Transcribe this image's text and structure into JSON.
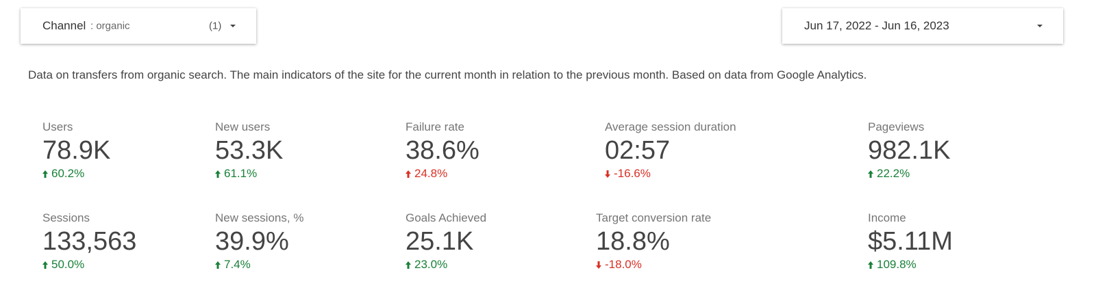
{
  "filter": {
    "label": "Channel",
    "value": ": organic",
    "count": "(1)"
  },
  "date_range": "Jun 17, 2022 - Jun 16, 2023",
  "description": "Data on transfers from organic search. The main indicators of the site for the current month in relation to the previous month. Based on data from Google Analytics.",
  "scorecards": [
    {
      "label": "Users",
      "value": "78.9K",
      "delta": "60.2%",
      "color": "#188038"
    },
    {
      "label": "New users",
      "value": "53.3K",
      "delta": "61.1%",
      "color": "#188038"
    },
    {
      "label": "Failure rate",
      "value": "38.6%",
      "delta": "24.8%",
      "color": "#d93025"
    },
    {
      "label": "Average session duration",
      "value": "02:57",
      "delta": "-16.6%",
      "color": "#d93025"
    },
    {
      "label": "Pageviews",
      "value": "982.1K",
      "delta": "22.2%",
      "color": "#188038"
    },
    {
      "label": "Sessions",
      "value": "133,563",
      "delta": "50.0%",
      "color": "#188038"
    },
    {
      "label": "New sessions, %",
      "value": "39.9%",
      "delta": "7.4%",
      "color": "#188038"
    },
    {
      "label": "Goals Achieved",
      "value": "25.1K",
      "delta": "23.0%",
      "color": "#188038"
    },
    {
      "label": "Target conversion rate",
      "value": "18.8%",
      "delta": "-18.0%",
      "color": "#d93025"
    },
    {
      "label": "Income",
      "value": "$5.11M",
      "delta": "109.8%",
      "color": "#188038"
    }
  ]
}
